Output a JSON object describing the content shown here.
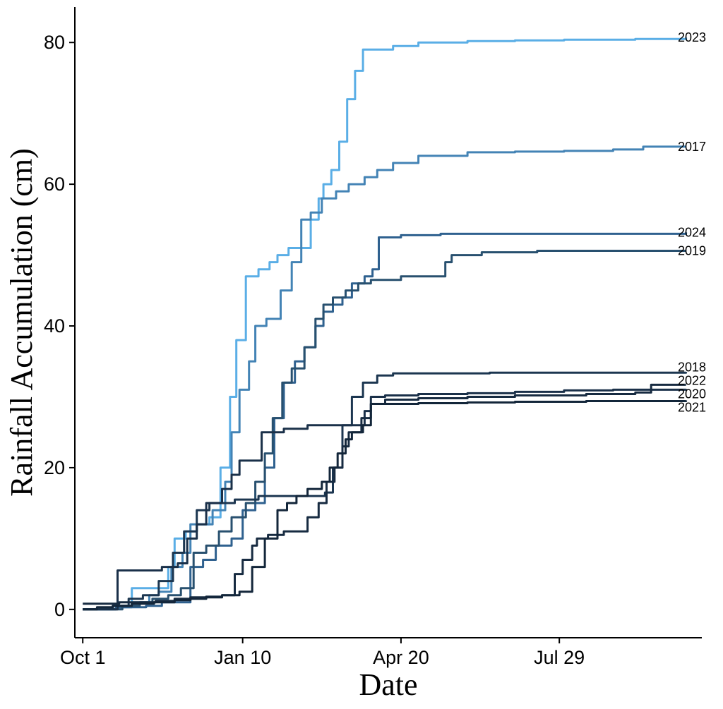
{
  "chart_data": {
    "type": "line",
    "title": "",
    "xlabel": "Date",
    "ylabel": "Rainfall Accumulation (cm)",
    "x_domain": [
      "2000-09-26",
      "2001-10-27"
    ],
    "ylim": [
      -4,
      85
    ],
    "x_ticks": [
      {
        "date": "2000-10-01",
        "label": "Oct 1"
      },
      {
        "date": "2001-01-10",
        "label": "Jan 10"
      },
      {
        "date": "2001-04-20",
        "label": "Apr 20"
      },
      {
        "date": "2001-07-29",
        "label": "Jul 29"
      }
    ],
    "y_ticks": [
      {
        "value": 0,
        "label": "0"
      },
      {
        "value": 20,
        "label": "20"
      },
      {
        "value": 40,
        "label": "40"
      },
      {
        "value": 60,
        "label": "60"
      },
      {
        "value": 80,
        "label": "80"
      }
    ],
    "grid": false,
    "legend": "none",
    "series": [
      {
        "name": "2023",
        "color": "#5aaee6",
        "points": [
          [
            "2000-10-01",
            0
          ],
          [
            "2000-10-10",
            0
          ],
          [
            "2000-10-20",
            0.5
          ],
          [
            "2000-10-28",
            0.5
          ],
          [
            "2000-11-01",
            3
          ],
          [
            "2000-11-20",
            3
          ],
          [
            "2000-11-24",
            6
          ],
          [
            "2000-11-28",
            10
          ],
          [
            "2000-12-05",
            11
          ],
          [
            "2000-12-12",
            12
          ],
          [
            "2000-12-20",
            13
          ],
          [
            "2000-12-27",
            20
          ],
          [
            "2001-01-02",
            30
          ],
          [
            "2001-01-06",
            38
          ],
          [
            "2001-01-12",
            47
          ],
          [
            "2001-01-20",
            48
          ],
          [
            "2001-01-27",
            49
          ],
          [
            "2001-02-01",
            50
          ],
          [
            "2001-02-08",
            51
          ],
          [
            "2001-02-18",
            51
          ],
          [
            "2001-02-22",
            55
          ],
          [
            "2001-02-27",
            58
          ],
          [
            "2001-03-02",
            60
          ],
          [
            "2001-03-07",
            62
          ],
          [
            "2001-03-12",
            66
          ],
          [
            "2001-03-17",
            72
          ],
          [
            "2001-03-22",
            76
          ],
          [
            "2001-03-27",
            79
          ],
          [
            "2001-04-15",
            79.5
          ],
          [
            "2001-05-01",
            80
          ],
          [
            "2001-06-01",
            80.2
          ],
          [
            "2001-07-01",
            80.3
          ],
          [
            "2001-08-01",
            80.4
          ],
          [
            "2001-09-15",
            80.5
          ],
          [
            "2001-10-17",
            80.7
          ]
        ]
      },
      {
        "name": "2017",
        "color": "#4383b5",
        "points": [
          [
            "2000-10-01",
            0
          ],
          [
            "2000-10-10",
            0
          ],
          [
            "2000-10-22",
            0.3
          ],
          [
            "2000-11-01",
            1
          ],
          [
            "2000-11-12",
            2
          ],
          [
            "2000-11-18",
            2.5
          ],
          [
            "2000-11-26",
            6
          ],
          [
            "2000-12-03",
            8
          ],
          [
            "2000-12-08",
            12
          ],
          [
            "2000-12-15",
            12
          ],
          [
            "2000-12-22",
            14
          ],
          [
            "2000-12-30",
            18
          ],
          [
            "2001-01-03",
            25
          ],
          [
            "2001-01-08",
            31
          ],
          [
            "2001-01-14",
            35
          ],
          [
            "2001-01-18",
            40
          ],
          [
            "2001-01-25",
            41
          ],
          [
            "2001-02-03",
            45
          ],
          [
            "2001-02-10",
            49
          ],
          [
            "2001-02-16",
            55
          ],
          [
            "2001-02-22",
            56
          ],
          [
            "2001-03-01",
            58
          ],
          [
            "2001-03-10",
            59
          ],
          [
            "2001-03-18",
            60
          ],
          [
            "2001-03-28",
            61
          ],
          [
            "2001-04-05",
            62
          ],
          [
            "2001-04-15",
            63
          ],
          [
            "2001-05-01",
            64
          ],
          [
            "2001-06-01",
            64.5
          ],
          [
            "2001-07-01",
            64.6
          ],
          [
            "2001-08-01",
            64.7
          ],
          [
            "2001-09-01",
            64.9
          ],
          [
            "2001-09-20",
            65.3
          ],
          [
            "2001-10-17",
            65.3
          ]
        ]
      },
      {
        "name": "2024",
        "color": "#2f618f",
        "points": [
          [
            "2000-10-01",
            0
          ],
          [
            "2000-10-12",
            0
          ],
          [
            "2000-10-22",
            0.3
          ],
          [
            "2000-11-10",
            0.5
          ],
          [
            "2000-11-20",
            1
          ],
          [
            "2000-12-01",
            1
          ],
          [
            "2000-12-08",
            6
          ],
          [
            "2000-12-16",
            7
          ],
          [
            "2000-12-24",
            9
          ],
          [
            "2001-01-03",
            10
          ],
          [
            "2001-01-10",
            14
          ],
          [
            "2001-01-18",
            15
          ],
          [
            "2001-01-24",
            20
          ],
          [
            "2001-01-30",
            27
          ],
          [
            "2001-02-05",
            32
          ],
          [
            "2001-02-12",
            35
          ],
          [
            "2001-02-18",
            37
          ],
          [
            "2001-02-25",
            40
          ],
          [
            "2001-03-02",
            42
          ],
          [
            "2001-03-08",
            43
          ],
          [
            "2001-03-14",
            44
          ],
          [
            "2001-03-20",
            46
          ],
          [
            "2001-03-28",
            47
          ],
          [
            "2001-04-02",
            48
          ],
          [
            "2001-04-06",
            52.5
          ],
          [
            "2001-04-20",
            52.8
          ],
          [
            "2001-05-15",
            53
          ],
          [
            "2001-07-01",
            53
          ],
          [
            "2001-08-15",
            53
          ],
          [
            "2001-10-17",
            53.2
          ]
        ]
      },
      {
        "name": "2019",
        "color": "#28506f",
        "points": [
          [
            "2000-10-01",
            0
          ],
          [
            "2000-10-18",
            0
          ],
          [
            "2000-10-26",
            0.5
          ],
          [
            "2000-11-06",
            1
          ],
          [
            "2000-11-14",
            1.5
          ],
          [
            "2000-11-24",
            2
          ],
          [
            "2000-12-02",
            3
          ],
          [
            "2000-12-10",
            8
          ],
          [
            "2000-12-18",
            9
          ],
          [
            "2000-12-26",
            11
          ],
          [
            "2001-01-03",
            13
          ],
          [
            "2001-01-12",
            15
          ],
          [
            "2001-01-18",
            18
          ],
          [
            "2001-01-24",
            22
          ],
          [
            "2001-01-29",
            27
          ],
          [
            "2001-02-04",
            32
          ],
          [
            "2001-02-10",
            34
          ],
          [
            "2001-02-18",
            37
          ],
          [
            "2001-02-25",
            41
          ],
          [
            "2001-03-02",
            43
          ],
          [
            "2001-03-08",
            44
          ],
          [
            "2001-03-16",
            45
          ],
          [
            "2001-03-24",
            46
          ],
          [
            "2001-04-01",
            46.5
          ],
          [
            "2001-04-20",
            47
          ],
          [
            "2001-05-15",
            47
          ],
          [
            "2001-05-18",
            49
          ],
          [
            "2001-05-22",
            50
          ],
          [
            "2001-06-10",
            50.4
          ],
          [
            "2001-07-15",
            50.6
          ],
          [
            "2001-10-17",
            50.6
          ]
        ]
      },
      {
        "name": "2018",
        "color": "#1c3650",
        "points": [
          [
            "2000-10-01",
            0
          ],
          [
            "2000-10-10",
            0.2
          ],
          [
            "2000-10-20",
            0.5
          ],
          [
            "2000-10-30",
            1.5
          ],
          [
            "2000-11-08",
            2
          ],
          [
            "2000-11-18",
            4
          ],
          [
            "2000-11-27",
            8
          ],
          [
            "2000-12-04",
            11
          ],
          [
            "2000-12-12",
            14
          ],
          [
            "2000-12-20",
            15
          ],
          [
            "2001-01-05",
            15.5
          ],
          [
            "2001-01-20",
            16
          ],
          [
            "2001-02-05",
            16
          ],
          [
            "2001-02-20",
            16
          ],
          [
            "2001-03-03",
            16.5
          ],
          [
            "2001-03-08",
            20
          ],
          [
            "2001-03-14",
            26
          ],
          [
            "2001-03-20",
            30
          ],
          [
            "2001-03-27",
            32
          ],
          [
            "2001-04-05",
            33
          ],
          [
            "2001-04-15",
            33.3
          ],
          [
            "2001-05-15",
            33.3
          ],
          [
            "2001-06-15",
            33.4
          ],
          [
            "2001-08-01",
            33.4
          ],
          [
            "2001-10-17",
            33.5
          ]
        ]
      },
      {
        "name": "2022",
        "color": "#1a3049",
        "points": [
          [
            "2000-10-01",
            0
          ],
          [
            "2000-10-18",
            0
          ],
          [
            "2000-10-23",
            5.5
          ],
          [
            "2000-11-05",
            5.5
          ],
          [
            "2000-11-20",
            6
          ],
          [
            "2000-11-30",
            6.5
          ],
          [
            "2000-12-06",
            10
          ],
          [
            "2000-12-12",
            12
          ],
          [
            "2000-12-18",
            15
          ],
          [
            "2000-12-28",
            17
          ],
          [
            "2001-01-03",
            19
          ],
          [
            "2001-01-08",
            21
          ],
          [
            "2001-01-16",
            21
          ],
          [
            "2001-01-22",
            25
          ],
          [
            "2001-02-05",
            25.5
          ],
          [
            "2001-02-20",
            26
          ],
          [
            "2001-03-10",
            26
          ],
          [
            "2001-03-20",
            26
          ],
          [
            "2001-03-28",
            28
          ],
          [
            "2001-04-01",
            30
          ],
          [
            "2001-04-10",
            30.2
          ],
          [
            "2001-05-01",
            30.4
          ],
          [
            "2001-06-01",
            30.5
          ],
          [
            "2001-07-01",
            30.7
          ],
          [
            "2001-08-01",
            30.9
          ],
          [
            "2001-09-01",
            31
          ],
          [
            "2001-10-17",
            31.1
          ]
        ]
      },
      {
        "name": "2020",
        "color": "#172b41",
        "points": [
          [
            "2000-10-01",
            0.8
          ],
          [
            "2000-10-18",
            0.8
          ],
          [
            "2000-10-24",
            1
          ],
          [
            "2000-11-04",
            1
          ],
          [
            "2000-11-16",
            1.2
          ],
          [
            "2000-11-28",
            1.5
          ],
          [
            "2000-12-08",
            1.7
          ],
          [
            "2000-12-18",
            1.8
          ],
          [
            "2000-12-28",
            2
          ],
          [
            "2001-01-05",
            5
          ],
          [
            "2001-01-10",
            7
          ],
          [
            "2001-01-16",
            9
          ],
          [
            "2001-01-19",
            10
          ],
          [
            "2001-01-26",
            10.5
          ],
          [
            "2001-02-05",
            11
          ],
          [
            "2001-02-20",
            13
          ],
          [
            "2001-02-27",
            15
          ],
          [
            "2001-03-04",
            18
          ],
          [
            "2001-03-09",
            20
          ],
          [
            "2001-03-14",
            23
          ],
          [
            "2001-03-18",
            25
          ],
          [
            "2001-03-26",
            27
          ],
          [
            "2001-04-01",
            29
          ],
          [
            "2001-04-10",
            29.6
          ],
          [
            "2001-05-01",
            29.8
          ],
          [
            "2001-06-01",
            30
          ],
          [
            "2001-07-01",
            30.2
          ],
          [
            "2001-08-15",
            30.4
          ],
          [
            "2001-09-15",
            30.6
          ],
          [
            "2001-09-25",
            31.7
          ],
          [
            "2001-10-17",
            31.7
          ]
        ]
      },
      {
        "name": "2021",
        "color": "#13263a",
        "points": [
          [
            "2000-10-01",
            0
          ],
          [
            "2000-10-10",
            0.3
          ],
          [
            "2000-10-20",
            0.5
          ],
          [
            "2000-11-01",
            0.8
          ],
          [
            "2000-11-15",
            1
          ],
          [
            "2000-11-28",
            1.3
          ],
          [
            "2000-12-08",
            1.5
          ],
          [
            "2000-12-18",
            1.7
          ],
          [
            "2000-12-28",
            2
          ],
          [
            "2001-01-08",
            2.5
          ],
          [
            "2001-01-16",
            6
          ],
          [
            "2001-01-24",
            10
          ],
          [
            "2001-02-01",
            14
          ],
          [
            "2001-02-07",
            15
          ],
          [
            "2001-02-13",
            16
          ],
          [
            "2001-02-20",
            17
          ],
          [
            "2001-03-01",
            18
          ],
          [
            "2001-03-06",
            20
          ],
          [
            "2001-03-11",
            22
          ],
          [
            "2001-03-16",
            24
          ],
          [
            "2001-03-20",
            25
          ],
          [
            "2001-03-27",
            26
          ],
          [
            "2001-04-01",
            29
          ],
          [
            "2001-04-10",
            29
          ],
          [
            "2001-05-01",
            29.1
          ],
          [
            "2001-06-01",
            29.2
          ],
          [
            "2001-07-01",
            29.3
          ],
          [
            "2001-08-15",
            29.4
          ],
          [
            "2001-10-17",
            29.5
          ]
        ]
      }
    ],
    "end_labels": [
      {
        "series": "2023",
        "text": "2023",
        "y": 80.7
      },
      {
        "series": "2017",
        "text": "2017",
        "y": 65.3
      },
      {
        "series": "2024",
        "text": "2024",
        "y": 53.2
      },
      {
        "series": "2019",
        "text": "2019",
        "y": 50.6
      },
      {
        "series": "2018",
        "text": "2018",
        "y": 34.2
      },
      {
        "series": "2022",
        "text": "2022",
        "y": 32.3
      },
      {
        "series": "2020",
        "text": "2020",
        "y": 30.4
      },
      {
        "series": "2021",
        "text": "2021",
        "y": 28.5
      }
    ]
  }
}
